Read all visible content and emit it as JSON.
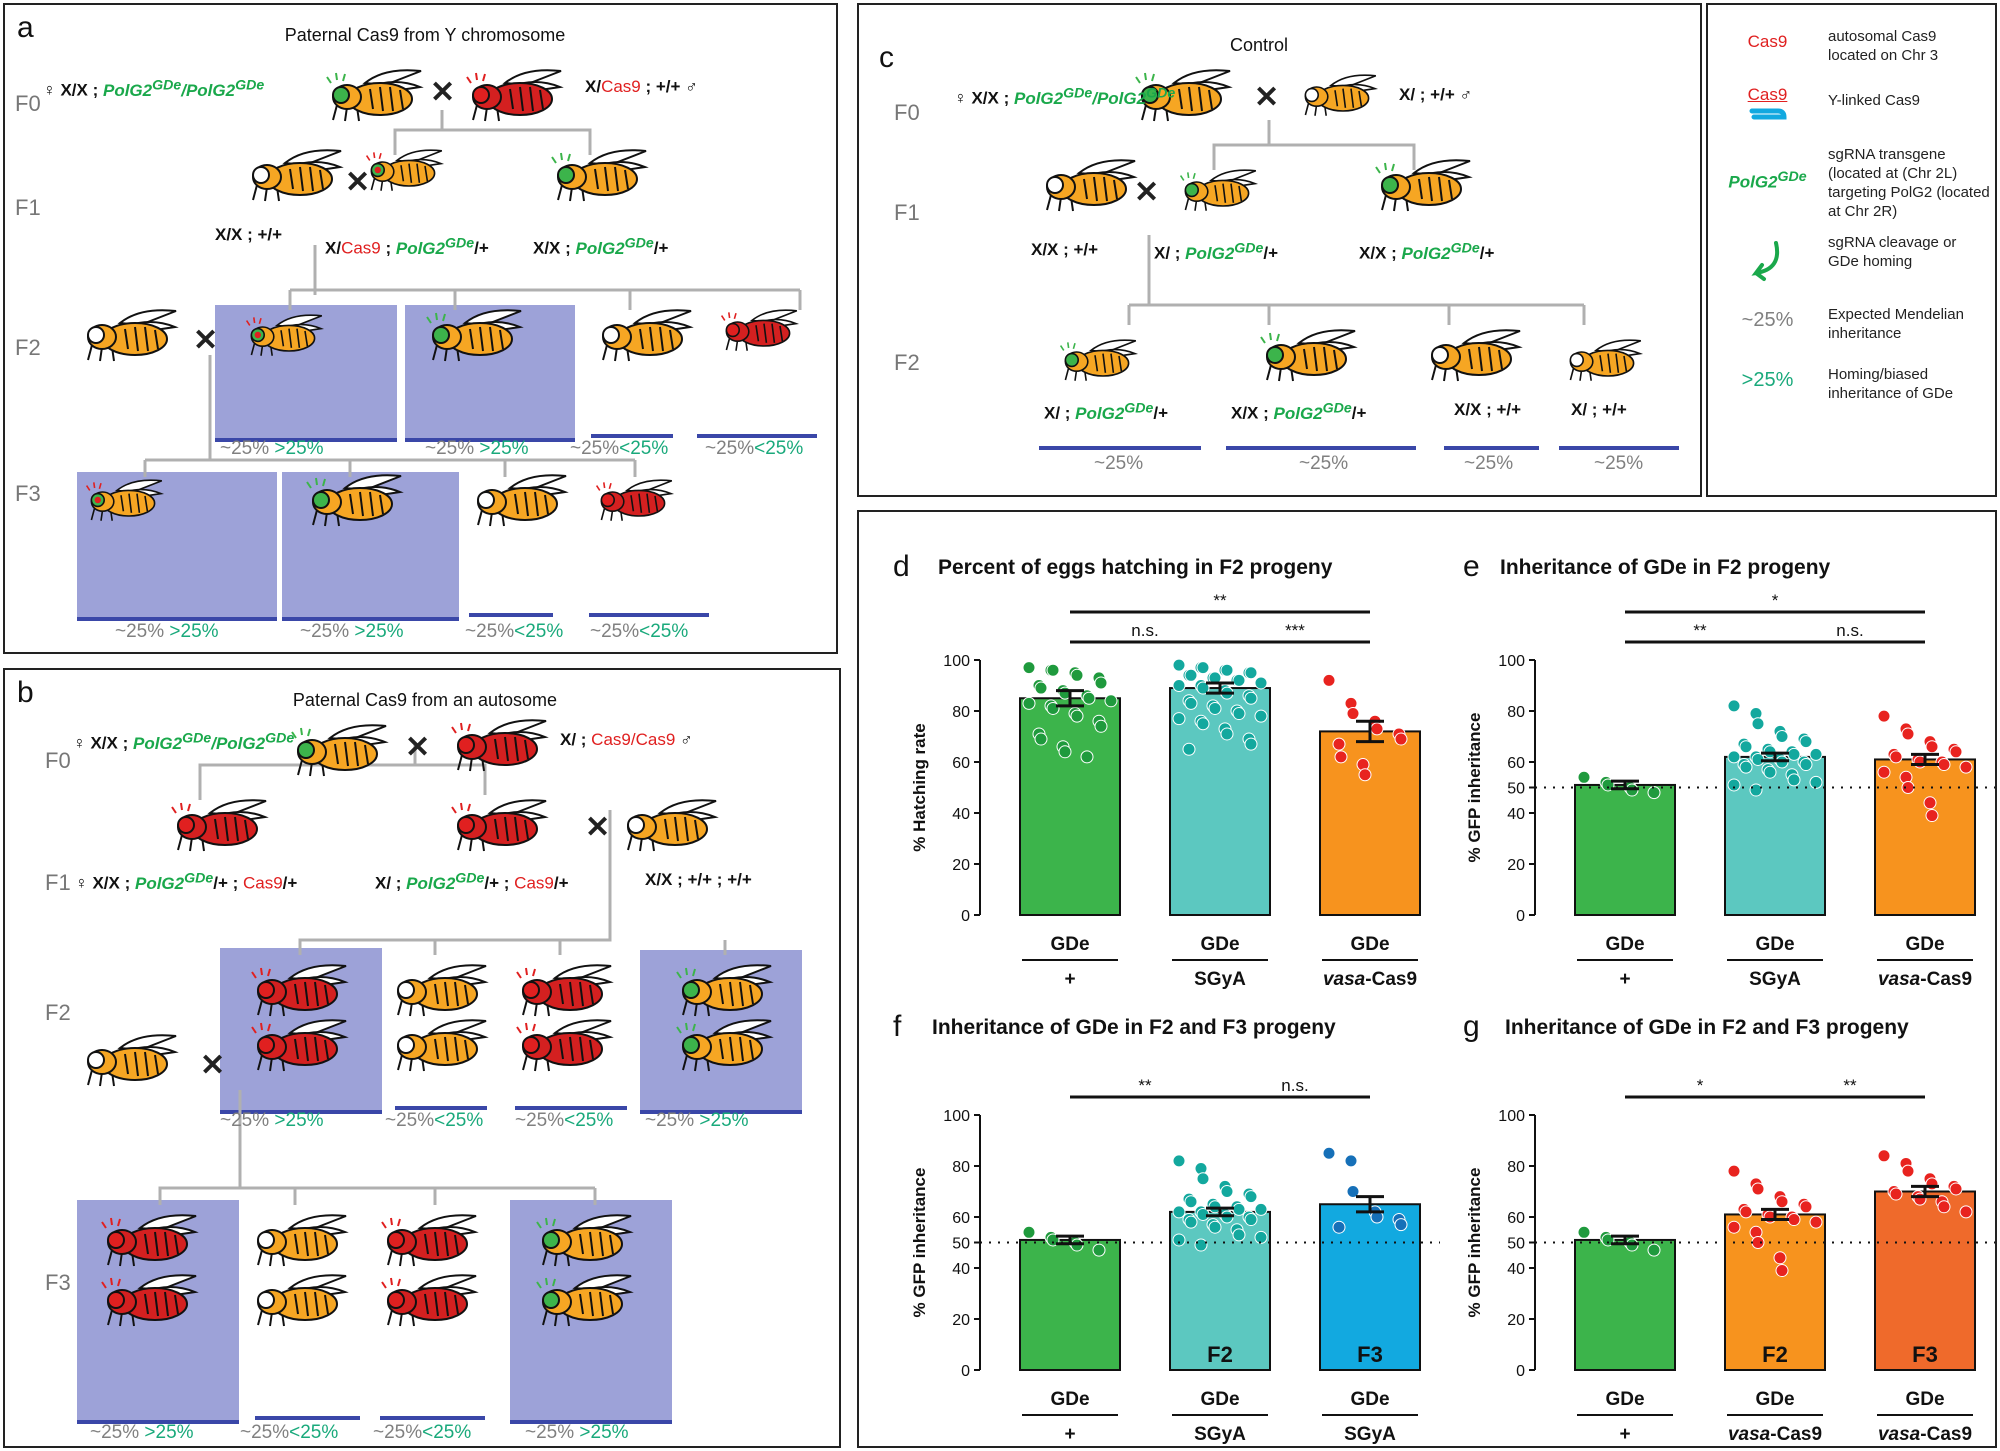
{
  "panel_a": {
    "label": "a",
    "title": "Paternal Cas9 from Y chromosome",
    "generations": [
      "F0",
      "F1",
      "F2",
      "F3"
    ],
    "f0_female_genotype": "♀ X/X ; PolG2GDe/PolG2GDe",
    "f0_male_genotype": "X/Cas9 ; +/+ ♂",
    "f1_genotypes": [
      "X/X ; +/+",
      "X/Cas9 ; PolG2GDe/+",
      "X/X ; PolG2GDe/+"
    ],
    "f2_ratios": [
      {
        "expected": "~25%",
        "observed": ">25%"
      },
      {
        "expected": "~25%",
        "observed": ">25%"
      },
      {
        "expected": "~25%",
        "observed": "<25%"
      },
      {
        "expected": "~25%",
        "observed": "<25%"
      }
    ],
    "f3_ratios": [
      {
        "expected": "~25%",
        "observed": ">25%"
      },
      {
        "expected": "~25%",
        "observed": ">25%"
      },
      {
        "expected": "~25%",
        "observed": "<25%"
      },
      {
        "expected": "~25%",
        "observed": "<25%"
      }
    ]
  },
  "panel_b": {
    "label": "b",
    "title": "Paternal Cas9 from an autosome",
    "generations": [
      "F0",
      "F1",
      "F2",
      "F3"
    ],
    "f2_ratios": [
      {
        "expected": "~25%",
        "observed": ">25%"
      },
      {
        "expected": "~25%",
        "observed": "<25%"
      },
      {
        "expected": "~25%",
        "observed": "<25%"
      },
      {
        "expected": "~25%",
        "observed": ">25%"
      }
    ],
    "f3_ratios": [
      {
        "expected": "~25%",
        "observed": ">25%"
      },
      {
        "expected": "~25%",
        "observed": "<25%"
      },
      {
        "expected": "~25%",
        "observed": "<25%"
      },
      {
        "expected": "~25%",
        "observed": ">25%"
      }
    ]
  },
  "panel_c": {
    "label": "c",
    "title": "Control",
    "generations": [
      "F0",
      "F1",
      "F2"
    ],
    "f2_ratios": [
      "~25%",
      "~25%",
      "~25%",
      "~25%"
    ]
  },
  "legend": {
    "items": [
      {
        "key": "Cas9",
        "text": "autosomal Cas9 located on Chr 3"
      },
      {
        "key": "Cas9",
        "text": "Y-linked Cas9"
      },
      {
        "key": "PolG2GDe",
        "text": "sgRNA transgene (located at (Chr 2L) targeting PolG2 (located at Chr 2R)"
      },
      {
        "key": "",
        "text": "sgRNA cleavage or GDe homing"
      },
      {
        "key": "~25%",
        "text": "Expected Mendelian inheritance"
      },
      {
        "key": ">25%",
        "text": "Homing/biased inheritance of GDe"
      }
    ]
  },
  "symbols": {
    "female": "♀",
    "male": "♂",
    "cross": "✕",
    "x": "X",
    "plus": "+",
    "cas9": "Cas9",
    "gde": "PolG2",
    "gde_sup": "GDe"
  },
  "colors": {
    "green": "#3cb44b",
    "teal": "#5cc8c0",
    "orange": "#f7931e",
    "blue": "#12a9e0",
    "red_orange": "#ef6a2b",
    "highlight": "#9da2d8",
    "underline": "#3a47a8"
  },
  "chart_data": [
    {
      "label": "d",
      "type": "bar",
      "title": "Percent of eggs hatching in F2 progeny",
      "ylabel": "% Hatching rate",
      "ylim": [
        0,
        100
      ],
      "yticks": [
        0,
        20,
        40,
        60,
        80,
        100
      ],
      "categories": [
        {
          "top": "GDe",
          "bottom": "+"
        },
        {
          "top": "GDe",
          "bottom": "SGyA"
        },
        {
          "top": "GDe",
          "bottom": "vasa-Cas9"
        }
      ],
      "values": [
        85,
        89,
        72
      ],
      "errors": [
        3,
        2,
        4
      ],
      "colors": [
        "#3cb44b",
        "#5cc8c0",
        "#f7931e"
      ],
      "dot_colors": [
        "#1f9a3d",
        "#13a89e",
        "#e8231f"
      ],
      "points": [
        [
          97,
          96,
          96,
          95,
          94,
          93,
          91,
          90,
          89,
          88,
          87,
          86,
          85,
          84,
          83,
          82,
          81,
          79,
          78,
          76,
          74,
          71,
          69,
          66,
          64,
          62
        ],
        [
          98,
          97,
          97,
          96,
          96,
          95,
          95,
          94,
          94,
          93,
          93,
          92,
          92,
          91,
          90,
          90,
          89,
          88,
          87,
          86,
          85,
          84,
          83,
          82,
          81,
          80,
          79,
          78,
          77,
          76,
          75,
          73,
          71,
          69,
          67,
          65
        ],
        [
          92,
          83,
          79,
          76,
          73,
          71,
          69,
          67,
          62,
          59,
          55
        ]
      ],
      "significance": [
        {
          "from": 0,
          "to": 2,
          "label": "**"
        },
        {
          "from": 0,
          "to": 1,
          "label": "n.s."
        },
        {
          "from": 1,
          "to": 2,
          "label": "***"
        }
      ]
    },
    {
      "label": "e",
      "type": "bar",
      "title": "Inheritance of GDe in F2 progeny",
      "ylabel": "% GFP inheritance",
      "ylim": [
        0,
        100
      ],
      "yticks": [
        0,
        20,
        40,
        50,
        60,
        80,
        100
      ],
      "reference_line": 50,
      "categories": [
        {
          "top": "GDe",
          "bottom": "+"
        },
        {
          "top": "GDe",
          "bottom": "SGyA"
        },
        {
          "top": "GDe",
          "bottom": "vasa-Cas9"
        }
      ],
      "values": [
        51,
        62,
        61
      ],
      "errors": [
        1.5,
        1.5,
        2
      ],
      "colors": [
        "#3cb44b",
        "#5cc8c0",
        "#f7931e"
      ],
      "dot_colors": [
        "#1f9a3d",
        "#13a89e",
        "#e8231f"
      ],
      "points": [
        [
          54,
          52,
          51,
          50,
          49,
          48
        ],
        [
          82,
          79,
          75,
          72,
          70,
          69,
          68,
          67,
          66,
          65,
          64,
          64,
          63,
          63,
          62,
          62,
          61,
          61,
          60,
          60,
          59,
          59,
          58,
          57,
          56,
          55,
          53,
          52,
          51,
          49
        ],
        [
          78,
          73,
          71,
          68,
          66,
          65,
          64,
          63,
          62,
          61,
          60,
          60,
          59,
          58,
          56,
          54,
          50,
          44,
          39
        ]
      ],
      "significance": [
        {
          "from": 0,
          "to": 2,
          "label": "*"
        },
        {
          "from": 0,
          "to": 1,
          "label": "**"
        },
        {
          "from": 1,
          "to": 2,
          "label": "n.s."
        }
      ]
    },
    {
      "label": "f",
      "type": "bar",
      "title": "Inheritance of GDe in F2 and F3 progeny",
      "ylabel": "% GFP inheritance",
      "ylim": [
        0,
        100
      ],
      "yticks": [
        0,
        20,
        40,
        50,
        60,
        80,
        100
      ],
      "reference_line": 50,
      "categories": [
        {
          "top": "GDe",
          "bottom": "+",
          "inner": ""
        },
        {
          "top": "GDe",
          "bottom": "SGyA",
          "inner": "F2"
        },
        {
          "top": "GDe",
          "bottom": "SGyA",
          "inner": "F3"
        }
      ],
      "values": [
        51,
        62,
        65
      ],
      "errors": [
        1.5,
        1.5,
        3
      ],
      "colors": [
        "#3cb44b",
        "#5cc8c0",
        "#12a9e0"
      ],
      "dot_colors": [
        "#1f9a3d",
        "#13a89e",
        "#1670b8"
      ],
      "points": [
        [
          54,
          52,
          51,
          50,
          49,
          47
        ],
        [
          82,
          79,
          75,
          72,
          70,
          69,
          68,
          67,
          66,
          65,
          64,
          64,
          63,
          63,
          62,
          62,
          61,
          61,
          60,
          60,
          59,
          59,
          58,
          57,
          56,
          55,
          53,
          52,
          51,
          49
        ],
        [
          85,
          82,
          70,
          62,
          60,
          59,
          57,
          56
        ]
      ],
      "significance": [
        {
          "from": 0,
          "to": 1,
          "label": "**"
        },
        {
          "from": 1,
          "to": 2,
          "label": "n.s."
        }
      ]
    },
    {
      "label": "g",
      "type": "bar",
      "title": "Inheritance of GDe in F2 and F3 progeny",
      "ylabel": "% GFP inheritance",
      "ylim": [
        0,
        100
      ],
      "yticks": [
        0,
        20,
        40,
        50,
        60,
        80,
        100
      ],
      "reference_line": 50,
      "categories": [
        {
          "top": "GDe",
          "bottom": "+",
          "inner": ""
        },
        {
          "top": "GDe",
          "bottom": "vasa-Cas9",
          "inner": "F2"
        },
        {
          "top": "GDe",
          "bottom": "vasa-Cas9",
          "inner": "F3"
        }
      ],
      "values": [
        51,
        61,
        70
      ],
      "errors": [
        1.5,
        2,
        2
      ],
      "colors": [
        "#3cb44b",
        "#f7931e",
        "#ef6a2b"
      ],
      "dot_colors": [
        "#1f9a3d",
        "#e8231f",
        "#e8231f"
      ],
      "points": [
        [
          54,
          52,
          51,
          50,
          49,
          47
        ],
        [
          78,
          73,
          71,
          68,
          66,
          65,
          64,
          63,
          62,
          61,
          60,
          60,
          59,
          58,
          56,
          54,
          50,
          44,
          39
        ],
        [
          84,
          81,
          78,
          75,
          73,
          72,
          71,
          70,
          69,
          68,
          67,
          66,
          64,
          62
        ]
      ],
      "significance": [
        {
          "from": 0,
          "to": 1,
          "label": "*"
        },
        {
          "from": 1,
          "to": 2,
          "label": "**"
        }
      ]
    }
  ]
}
